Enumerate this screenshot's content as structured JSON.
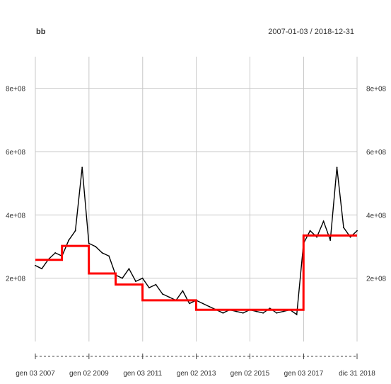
{
  "header": {
    "title": "bb",
    "date_range": "2007-01-03 / 2018-12-31"
  },
  "chart_data": {
    "type": "line",
    "title": "bb",
    "subtitle": "2007-01-03 / 2018-12-31",
    "xlabel": "",
    "ylabel": "",
    "x_range": [
      "2007-01-03",
      "2018-12-31"
    ],
    "ylim": [
      0,
      900000000
    ],
    "y_ticks": [
      {
        "value": 200000000,
        "label": "2e+08"
      },
      {
        "value": 400000000,
        "label": "4e+08"
      },
      {
        "value": 600000000,
        "label": "6e+08"
      },
      {
        "value": 800000000,
        "label": "8e+08"
      }
    ],
    "x_ticks": [
      {
        "date": "2007-01-03",
        "label": "gen 03 2007"
      },
      {
        "date": "2009-01-02",
        "label": "gen 02 2009"
      },
      {
        "date": "2011-01-03",
        "label": "gen 03 2011"
      },
      {
        "date": "2013-01-02",
        "label": "gen 02 2013"
      },
      {
        "date": "2015-01-02",
        "label": "gen 02 2015"
      },
      {
        "date": "2017-01-03",
        "label": "gen 03 2017"
      },
      {
        "date": "2018-12-31",
        "label": "dic 31 2018"
      }
    ],
    "grid": true,
    "colors": {
      "series": "#000000",
      "level": "#ff0000",
      "grid": "#c8c8c8"
    },
    "series": [
      {
        "style": "black-line",
        "x": [
          "2007-01-03",
          "2007-04-01",
          "2007-07-01",
          "2007-10-01",
          "2008-01-01",
          "2008-04-01",
          "2008-07-01",
          "2008-10-01",
          "2009-01-01",
          "2009-04-01",
          "2009-07-01",
          "2009-10-01",
          "2010-01-01",
          "2010-04-01",
          "2010-07-01",
          "2010-10-01",
          "2011-01-01",
          "2011-04-01",
          "2011-07-01",
          "2011-10-01",
          "2012-01-01",
          "2012-04-01",
          "2012-07-01",
          "2012-10-01",
          "2013-01-01",
          "2013-04-01",
          "2013-07-01",
          "2013-10-01",
          "2014-01-01",
          "2014-04-01",
          "2014-07-01",
          "2014-10-01",
          "2015-01-01",
          "2015-04-01",
          "2015-07-01",
          "2015-10-01",
          "2016-01-01",
          "2016-04-01",
          "2016-07-01",
          "2016-10-01",
          "2017-01-01",
          "2017-04-01",
          "2017-07-01",
          "2017-10-01",
          "2018-01-01",
          "2018-04-01",
          "2018-07-01",
          "2018-10-01",
          "2018-12-31"
        ],
        "values": [
          240000000,
          230000000,
          260000000,
          280000000,
          270000000,
          320000000,
          350000000,
          550000000,
          310000000,
          300000000,
          280000000,
          270000000,
          210000000,
          200000000,
          230000000,
          190000000,
          200000000,
          170000000,
          180000000,
          150000000,
          140000000,
          130000000,
          160000000,
          120000000,
          130000000,
          120000000,
          110000000,
          100000000,
          90000000,
          100000000,
          95000000,
          90000000,
          100000000,
          95000000,
          90000000,
          105000000,
          90000000,
          95000000,
          100000000,
          85000000,
          310000000,
          350000000,
          330000000,
          380000000,
          320000000,
          550000000,
          360000000,
          330000000,
          350000000
        ]
      },
      {
        "style": "red-step",
        "steps": [
          {
            "start": "2007-01-03",
            "end": "2007-12-31",
            "value": 258000000
          },
          {
            "start": "2008-01-01",
            "end": "2008-12-31",
            "value": 302000000
          },
          {
            "start": "2009-01-01",
            "end": "2009-12-31",
            "value": 215000000
          },
          {
            "start": "2010-01-01",
            "end": "2010-12-31",
            "value": 180000000
          },
          {
            "start": "2011-01-01",
            "end": "2012-12-31",
            "value": 130000000
          },
          {
            "start": "2013-01-01",
            "end": "2016-12-31",
            "value": 100000000
          },
          {
            "start": "2017-01-01",
            "end": "2018-12-31",
            "value": 335000000
          }
        ]
      }
    ]
  }
}
